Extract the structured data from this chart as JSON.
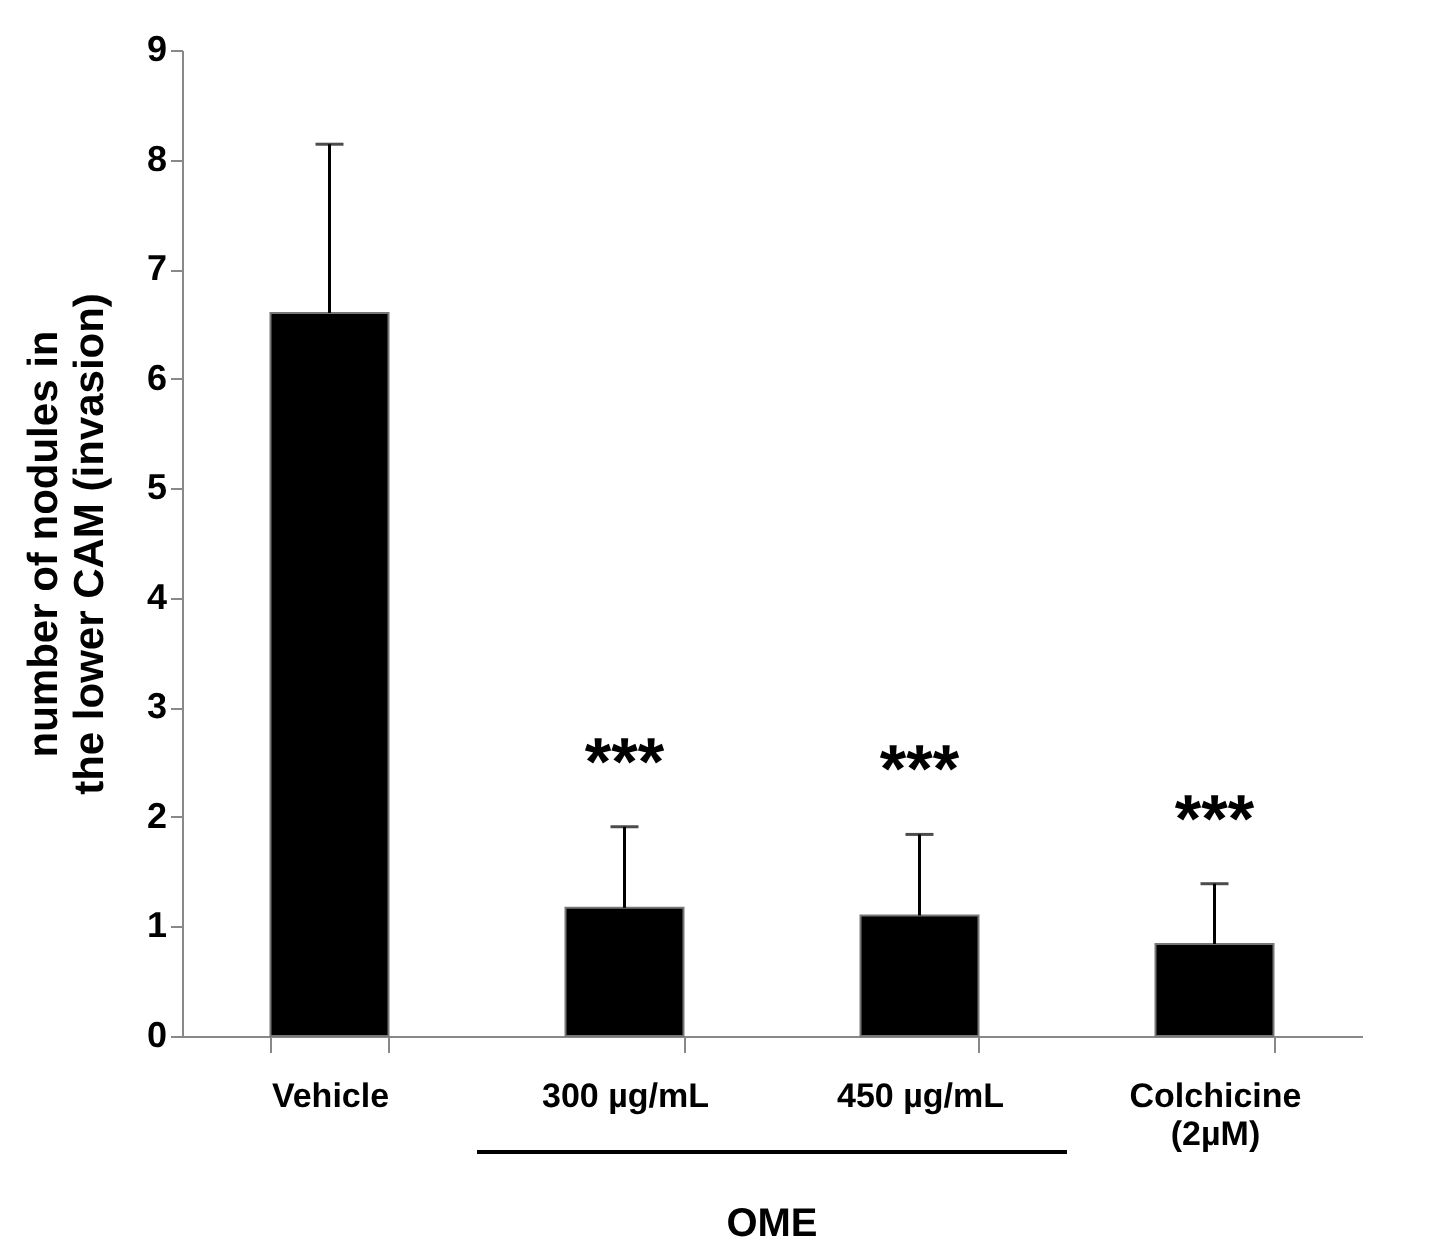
{
  "chart_data": {
    "type": "bar",
    "ylabel": "number of nodules in the lower CAM (invasion)",
    "categories": [
      "Vehicle",
      "300 µg/mL",
      "450 µg/mL",
      "Colchicine (2µM)"
    ],
    "values": [
      6.6,
      1.17,
      1.1,
      0.84
    ],
    "color": "#000000",
    "errors": [
      [
        6.6,
        8.14
      ],
      [
        1.17,
        1.91
      ],
      [
        1.1,
        1.84
      ],
      [
        0.84,
        1.39
      ]
    ],
    "ylim": [
      0,
      9
    ],
    "yticks": [
      0,
      1,
      2,
      3,
      4,
      5,
      6,
      7,
      8,
      9
    ],
    "grid": false,
    "annotations": [
      {
        "text": "***",
        "x": "300 µg/mL",
        "y": 1.91
      },
      {
        "text": "***",
        "x": "450 µg/mL",
        "y": 1.84
      },
      {
        "text": "***",
        "x": "Colchicine (2µM)",
        "y": 1.39
      },
      "OME"
    ]
  }
}
